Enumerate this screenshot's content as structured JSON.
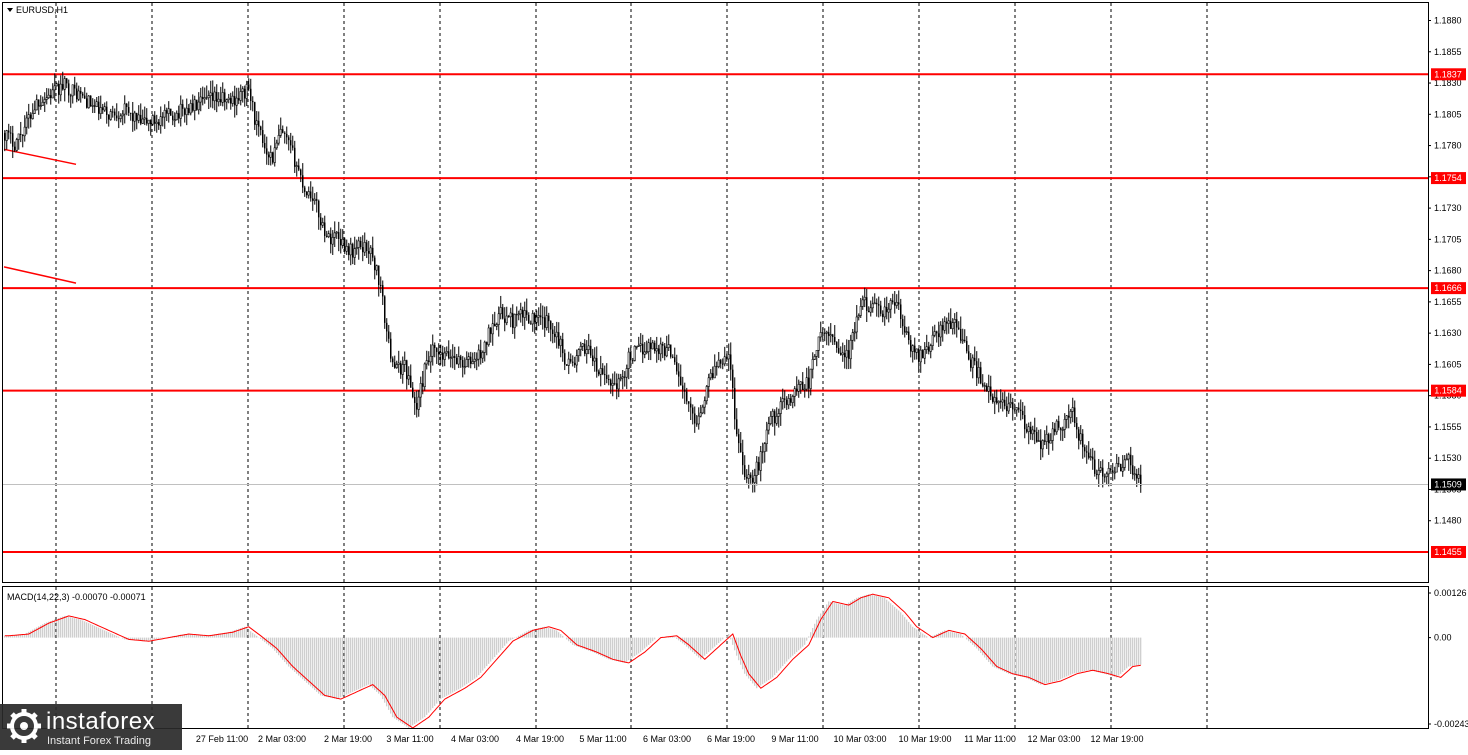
{
  "window": {
    "symbol_title": "EURUSD,H1"
  },
  "colors": {
    "level": "#ff0000",
    "candle": "#000000",
    "macd_signal": "#ff0000",
    "macd_hist": "#bfbfbf",
    "current_price": "#000000"
  },
  "logo": {
    "name": "instaforex",
    "tagline": "Instant Forex Trading"
  },
  "chart_data": [
    {
      "type": "candlestick",
      "title": "EURUSD,H1",
      "ylim": [
        1.1431,
        1.1894
      ],
      "y_ticks": [
        "1.1880",
        "1.1855",
        "1.1830",
        "1.1805",
        "1.1780",
        "1.1755",
        "1.1730",
        "1.1705",
        "1.1680",
        "1.1655",
        "1.1630",
        "1.1605",
        "1.1580",
        "1.1555",
        "1.1530",
        "1.1505",
        "1.1480"
      ],
      "x_ticks": [
        "27 Feb 11:00",
        "2 Mar 03:00",
        "2 Mar 19:00",
        "3 Mar 11:00",
        "4 Mar 03:00",
        "4 Mar 19:00",
        "5 Mar 11:00",
        "6 Mar 03:00",
        "6 Mar 19:00",
        "9 Mar 11:00",
        "10 Mar 03:00",
        "10 Mar 19:00",
        "11 Mar 11:00",
        "12 Mar 03:00",
        "12 Mar 19:00"
      ],
      "horizontal_levels": [
        "1.1837",
        "1.1754",
        "1.1666",
        "1.1584",
        "1.1455"
      ],
      "current_price": "1.1509",
      "trend_lines": [
        {
          "from": [
            0,
            1.1777
          ],
          "to": [
            22,
            1.1765
          ]
        },
        {
          "from": [
            0,
            1.1683
          ],
          "to": [
            22,
            1.167
          ]
        }
      ],
      "price_path": [
        [
          0,
          1.179
        ],
        [
          5,
          1.1782
        ],
        [
          10,
          1.1795
        ],
        [
          16,
          1.1815
        ],
        [
          22,
          1.182
        ],
        [
          30,
          1.1828
        ],
        [
          38,
          1.182
        ],
        [
          45,
          1.181
        ],
        [
          52,
          1.1805
        ],
        [
          60,
          1.1808
        ],
        [
          68,
          1.1798
        ],
        [
          76,
          1.18
        ],
        [
          86,
          1.1806
        ],
        [
          96,
          1.1812
        ],
        [
          106,
          1.1818
        ],
        [
          112,
          1.1815
        ],
        [
          118,
          1.182
        ],
        [
          122,
          1.1825
        ],
        [
          126,
          1.1795
        ],
        [
          130,
          1.178
        ],
        [
          134,
          1.177
        ],
        [
          138,
          1.179
        ],
        [
          142,
          1.178
        ],
        [
          146,
          1.1765
        ],
        [
          150,
          1.1745
        ],
        [
          154,
          1.174
        ],
        [
          158,
          1.172
        ],
        [
          162,
          1.1705
        ],
        [
          166,
          1.171
        ],
        [
          170,
          1.17
        ],
        [
          174,
          1.1695
        ],
        [
          178,
          1.17
        ],
        [
          182,
          1.1698
        ],
        [
          186,
          1.168
        ],
        [
          188,
          1.1665
        ],
        [
          192,
          1.162
        ],
        [
          196,
          1.16
        ],
        [
          200,
          1.1605
        ],
        [
          204,
          1.158
        ],
        [
          206,
          1.157
        ],
        [
          210,
          1.16
        ],
        [
          214,
          1.1615
        ],
        [
          218,
          1.161
        ],
        [
          224,
          1.1612
        ],
        [
          230,
          1.1605
        ],
        [
          236,
          1.161
        ],
        [
          240,
          1.1618
        ],
        [
          244,
          1.164
        ],
        [
          248,
          1.1645
        ],
        [
          254,
          1.164
        ],
        [
          260,
          1.1645
        ],
        [
          266,
          1.164
        ],
        [
          272,
          1.1638
        ],
        [
          276,
          1.163
        ],
        [
          280,
          1.161
        ],
        [
          284,
          1.1605
        ],
        [
          288,
          1.1615
        ],
        [
          292,
          1.162
        ],
        [
          296,
          1.16
        ],
        [
          300,
          1.1595
        ],
        [
          304,
          1.159
        ],
        [
          308,
          1.159
        ],
        [
          312,
          1.161
        ],
        [
          316,
          1.1615
        ],
        [
          322,
          1.162
        ],
        [
          328,
          1.1618
        ],
        [
          334,
          1.1615
        ],
        [
          338,
          1.159
        ],
        [
          342,
          1.157
        ],
        [
          346,
          1.156
        ],
        [
          350,
          1.158
        ],
        [
          354,
          1.16
        ],
        [
          358,
          1.161
        ],
        [
          362,
          1.1615
        ],
        [
          366,
          1.155
        ],
        [
          370,
          1.152
        ],
        [
          374,
          1.1512
        ],
        [
          378,
          1.153
        ],
        [
          382,
          1.156
        ],
        [
          386,
          1.1565
        ],
        [
          390,
          1.1575
        ],
        [
          394,
          1.158
        ],
        [
          398,
          1.159
        ],
        [
          402,
          1.159
        ],
        [
          406,
          1.162
        ],
        [
          410,
          1.163
        ],
        [
          414,
          1.1628
        ],
        [
          418,
          1.1615
        ],
        [
          422,
          1.1612
        ],
        [
          426,
          1.164
        ],
        [
          430,
          1.1655
        ],
        [
          434,
          1.165
        ],
        [
          438,
          1.1645
        ],
        [
          442,
          1.165
        ],
        [
          446,
          1.1655
        ],
        [
          450,
          1.163
        ],
        [
          454,
          1.1615
        ],
        [
          458,
          1.1612
        ],
        [
          462,
          1.162
        ],
        [
          466,
          1.163
        ],
        [
          470,
          1.1635
        ],
        [
          474,
          1.164
        ],
        [
          478,
          1.163
        ],
        [
          482,
          1.161
        ],
        [
          486,
          1.16
        ],
        [
          490,
          1.159
        ],
        [
          494,
          1.1575
        ],
        [
          498,
          1.1572
        ],
        [
          502,
          1.1574
        ],
        [
          506,
          1.157
        ],
        [
          510,
          1.1555
        ],
        [
          514,
          1.1548
        ],
        [
          518,
          1.154
        ],
        [
          522,
          1.1545
        ],
        [
          526,
          1.1555
        ],
        [
          530,
          1.156
        ],
        [
          534,
          1.1565
        ],
        [
          538,
          1.1545
        ],
        [
          542,
          1.1528
        ],
        [
          546,
          1.152
        ],
        [
          550,
          1.1518
        ],
        [
          554,
          1.1515
        ],
        [
          558,
          1.1525
        ],
        [
          562,
          1.1528
        ],
        [
          566,
          1.1515
        ],
        [
          568,
          1.1508
        ]
      ]
    },
    {
      "type": "line",
      "title": "MACD(14,22,3) -0.00070 -0.00071",
      "ylim": [
        -0.0025,
        0.0014
      ],
      "y_ticks": [
        "0.00126",
        "0.00",
        "-0.00243"
      ],
      "macd_path": [
        [
          0,
          5e-05
        ],
        [
          10,
          0.0001
        ],
        [
          20,
          0.0004
        ],
        [
          30,
          0.0006
        ],
        [
          38,
          0.0005
        ],
        [
          50,
          0.0002
        ],
        [
          60,
          -5e-05
        ],
        [
          70,
          -0.0001
        ],
        [
          80,
          0.0
        ],
        [
          90,
          0.0001
        ],
        [
          100,
          5e-05
        ],
        [
          112,
          0.00015
        ],
        [
          120,
          0.0003
        ],
        [
          126,
          5e-05
        ],
        [
          134,
          -0.0003
        ],
        [
          142,
          -0.0008
        ],
        [
          150,
          -0.0012
        ],
        [
          158,
          -0.0016
        ],
        [
          166,
          -0.0017
        ],
        [
          174,
          -0.0015
        ],
        [
          182,
          -0.0013
        ],
        [
          188,
          -0.0016
        ],
        [
          194,
          -0.0022
        ],
        [
          202,
          -0.0025
        ],
        [
          210,
          -0.0022
        ],
        [
          218,
          -0.0017
        ],
        [
          228,
          -0.0014
        ],
        [
          236,
          -0.0011
        ],
        [
          244,
          -0.0006
        ],
        [
          252,
          -0.0001
        ],
        [
          262,
          0.0002
        ],
        [
          270,
          0.0003
        ],
        [
          276,
          0.0002
        ],
        [
          284,
          -0.0002
        ],
        [
          294,
          -0.0004
        ],
        [
          302,
          -0.0006
        ],
        [
          310,
          -0.0007
        ],
        [
          318,
          -0.0004
        ],
        [
          326,
          0.0
        ],
        [
          334,
          5e-05
        ],
        [
          340,
          -0.0002
        ],
        [
          348,
          -0.0006
        ],
        [
          356,
          -0.0002
        ],
        [
          362,
          0.0001
        ],
        [
          366,
          -0.0005
        ],
        [
          370,
          -0.001
        ],
        [
          376,
          -0.0014
        ],
        [
          384,
          -0.0011
        ],
        [
          392,
          -0.0006
        ],
        [
          400,
          -0.0002
        ],
        [
          406,
          0.0005
        ],
        [
          412,
          0.001
        ],
        [
          420,
          0.0009
        ],
        [
          426,
          0.0011
        ],
        [
          432,
          0.0012
        ],
        [
          440,
          0.0011
        ],
        [
          448,
          0.0007
        ],
        [
          454,
          0.0003
        ],
        [
          462,
          0.0
        ],
        [
          470,
          0.0002
        ],
        [
          478,
          0.0001
        ],
        [
          486,
          -0.0003
        ],
        [
          494,
          -0.0008
        ],
        [
          502,
          -0.001
        ],
        [
          510,
          -0.0011
        ],
        [
          518,
          -0.0013
        ],
        [
          526,
          -0.0012
        ],
        [
          534,
          -0.001
        ],
        [
          542,
          -0.0009
        ],
        [
          550,
          -0.001
        ],
        [
          556,
          -0.0011
        ],
        [
          562,
          -0.0008
        ],
        [
          568,
          -0.00075
        ]
      ]
    }
  ]
}
